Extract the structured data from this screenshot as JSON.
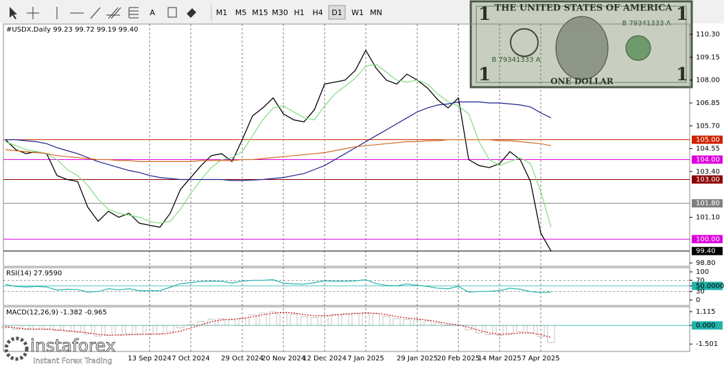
{
  "toolbar": {
    "text_tool": "A",
    "timeframes": [
      "M1",
      "M5",
      "M15",
      "M30",
      "H1",
      "H4",
      "D1",
      "W1",
      "MN"
    ],
    "active": "D1"
  },
  "banknote": {
    "heading": "THE UNITED STATES OF AMERICA",
    "denomination": "ONE DOLLAR",
    "serial": "B 79341333 A",
    "corner": "1"
  },
  "logo": {
    "name": "instaforex",
    "tagline": "Instant Forex Trading"
  },
  "chart_data": [
    {
      "type": "line",
      "legend_text": "#USDX,Daily  99.23 99.72 99.19 99.40",
      "categories": [
        null,
        null,
        null,
        null,
        null,
        null,
        null,
        null,
        null,
        null,
        null,
        null,
        null,
        null,
        "13 Sep 2024",
        null,
        null,
        null,
        "7 Oct 2024",
        null,
        null,
        null,
        null,
        "29 Oct 2024",
        null,
        null,
        null,
        "20 Nov 2024",
        null,
        null,
        null,
        "12 Dec 2024",
        null,
        null,
        null,
        "7 Jan 2025",
        null,
        null,
        null,
        null,
        "29 Jan 2025",
        null,
        null,
        null,
        "20 Feb 2025",
        null,
        null,
        null,
        "14 Mar 2025",
        null,
        null,
        null,
        "7 Apr 2025",
        null
      ],
      "series": [
        {
          "color": "#000000",
          "values": [
            105.0,
            104.5,
            104.3,
            104.4,
            104.3,
            103.2,
            103.0,
            102.9,
            101.6,
            100.9,
            101.4,
            101.1,
            101.3,
            100.8,
            100.7,
            100.6,
            101.3,
            102.5,
            103.1,
            103.7,
            104.2,
            104.3,
            103.9,
            105.0,
            106.2,
            106.6,
            107.1,
            106.3,
            106.0,
            105.9,
            106.5,
            107.8,
            107.9,
            108.0,
            108.5,
            109.5,
            108.6,
            108.0,
            107.8,
            108.3,
            108.0,
            107.6,
            107.0,
            106.6,
            107.1,
            104.0,
            103.7,
            103.6,
            103.8,
            104.4,
            104.0,
            102.9,
            100.3,
            99.4
          ]
        },
        {
          "color": "#7ddc7d",
          "values": [
            104.9,
            104.7,
            104.5,
            104.4,
            104.3,
            104.0,
            103.5,
            103.2,
            102.7,
            102.0,
            101.5,
            101.3,
            101.2,
            101.1,
            100.9,
            100.8,
            100.9,
            101.5,
            102.3,
            103.0,
            103.6,
            104.0,
            104.1,
            104.4,
            105.2,
            106.0,
            106.6,
            106.7,
            106.4,
            106.1,
            106.0,
            106.7,
            107.3,
            107.7,
            108.1,
            108.7,
            108.8,
            108.4,
            108.0,
            107.9,
            108.0,
            107.8,
            107.3,
            106.9,
            106.7,
            106.3,
            104.9,
            104.0,
            103.7,
            103.9,
            104.1,
            103.8,
            102.4,
            100.6
          ]
        },
        {
          "color": "#1c1c8c",
          "values": [
            105.0,
            105.0,
            104.95,
            104.9,
            104.8,
            104.6,
            104.45,
            104.3,
            104.1,
            103.9,
            103.75,
            103.6,
            103.45,
            103.35,
            103.2,
            103.1,
            103.05,
            103.0,
            103.0,
            103.0,
            103.0,
            103.0,
            102.95,
            102.95,
            102.97,
            103.0,
            103.05,
            103.1,
            103.2,
            103.3,
            103.5,
            103.7,
            104.0,
            104.3,
            104.6,
            104.9,
            105.2,
            105.5,
            105.8,
            106.1,
            106.4,
            106.6,
            106.75,
            106.8,
            106.9,
            106.9,
            106.9,
            106.85,
            106.85,
            106.8,
            106.75,
            106.65,
            106.35,
            106.1
          ]
        },
        {
          "color": "#d2691e",
          "values": [
            104.5,
            104.45,
            104.4,
            104.35,
            104.3,
            104.2,
            104.15,
            104.1,
            104.05,
            104.0,
            104.0,
            103.95,
            103.95,
            103.9,
            103.9,
            103.9,
            103.9,
            103.9,
            103.9,
            103.95,
            103.95,
            103.95,
            103.95,
            104.0,
            104.0,
            104.05,
            104.1,
            104.15,
            104.2,
            104.25,
            104.3,
            104.35,
            104.45,
            104.55,
            104.65,
            104.7,
            104.75,
            104.8,
            104.85,
            104.9,
            104.9,
            104.95,
            104.95,
            105.0,
            105.0,
            105.0,
            105.0,
            105.0,
            104.95,
            104.95,
            104.9,
            104.85,
            104.8,
            104.7
          ]
        }
      ],
      "levels": [
        {
          "value": 105,
          "label": "105.00",
          "color": "#cc2200"
        },
        {
          "value": 104,
          "label": "104.00",
          "color": "#dd00dd"
        },
        {
          "value": 103,
          "label": "103.00",
          "color": "#8b0000"
        },
        {
          "value": 101.8,
          "label": "101.80",
          "color": "#808080"
        },
        {
          "value": 100,
          "label": "100.00",
          "color": "#dd00dd"
        },
        {
          "value": 99.4,
          "label": "99.40",
          "color": "#000000"
        }
      ],
      "ylim": [
        98.63,
        110.82
      ],
      "yticks": [
        {
          "value": 110.3,
          "label": "110.30"
        },
        {
          "value": 109.15,
          "label": "109.15"
        },
        {
          "value": 108,
          "label": "108.00"
        },
        {
          "value": 106.85,
          "label": "106.85"
        },
        {
          "value": 105.7,
          "label": "105.70"
        },
        {
          "value": 104.55,
          "label": "104.55"
        },
        {
          "value": 103.4,
          "label": "103.40"
        },
        {
          "value": 101.1,
          "label": "101.10"
        },
        {
          "value": 98.8,
          "label": "98.80"
        }
      ],
      "grid": true
    },
    {
      "type": "line",
      "legend_text": "RSI(14) 27.9590",
      "series": [
        {
          "color": "#20b2aa",
          "values": [
            55,
            48,
            46,
            48,
            46,
            35,
            38,
            37,
            28,
            30,
            40,
            36,
            40,
            33,
            33,
            33,
            45,
            58,
            62,
            66,
            67,
            66,
            60,
            67,
            70,
            70,
            72,
            60,
            57,
            56,
            62,
            68,
            67,
            67,
            68,
            72,
            58,
            52,
            50,
            57,
            52,
            48,
            42,
            40,
            48,
            28,
            30,
            31,
            33,
            42,
            38,
            30,
            26,
            28
          ]
        }
      ],
      "ylim": [
        -19.5,
        114.6
      ],
      "yticks": [
        100,
        70,
        {
          "value": 50,
          "label": "50.0000",
          "color": "#20b2aa"
        },
        30,
        0
      ],
      "dashed_levels": [
        70,
        30
      ]
    },
    {
      "type": "macd",
      "legend_text": "MACD(12,26,9) -1.382 -0.965",
      "series": [
        {
          "color": "#a0a0a0",
          "style": "bar",
          "values": [
            -0.2,
            -0.3,
            -0.35,
            -0.3,
            -0.3,
            -0.4,
            -0.5,
            -0.55,
            -0.7,
            -0.85,
            -0.8,
            -0.75,
            -0.7,
            -0.7,
            -0.7,
            -0.7,
            -0.5,
            -0.2,
            0.1,
            0.3,
            0.5,
            0.55,
            0.45,
            0.6,
            0.85,
            1.0,
            1.1,
            1.05,
            0.9,
            0.7,
            0.65,
            0.8,
            0.9,
            0.95,
            1.0,
            1.05,
            0.95,
            0.75,
            0.55,
            0.5,
            0.45,
            0.35,
            0.2,
            0.05,
            0.0,
            -0.35,
            -0.6,
            -0.75,
            -0.8,
            -0.65,
            -0.5,
            -0.6,
            -0.9,
            -1.38
          ]
        },
        {
          "color": "#cc0000",
          "style": "dotted",
          "values": [
            -0.1,
            -0.2,
            -0.28,
            -0.3,
            -0.3,
            -0.35,
            -0.42,
            -0.5,
            -0.6,
            -0.72,
            -0.78,
            -0.78,
            -0.75,
            -0.72,
            -0.71,
            -0.7,
            -0.62,
            -0.45,
            -0.2,
            0.05,
            0.3,
            0.45,
            0.5,
            0.55,
            0.7,
            0.85,
            0.98,
            1.05,
            1.0,
            0.88,
            0.78,
            0.78,
            0.84,
            0.9,
            0.96,
            1.0,
            0.98,
            0.88,
            0.72,
            0.6,
            0.52,
            0.43,
            0.3,
            0.15,
            0.05,
            -0.15,
            -0.4,
            -0.6,
            -0.72,
            -0.7,
            -0.6,
            -0.6,
            -0.75,
            -0.965
          ]
        }
      ],
      "ylim": [
        -2.1,
        1.5
      ],
      "yticks": [
        1.115,
        {
          "value": 0,
          "label": "0.000",
          "color": "#20b2aa"
        },
        -1.501
      ]
    }
  ]
}
